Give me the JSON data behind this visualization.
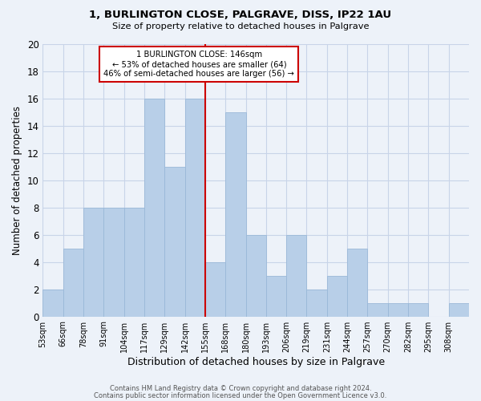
{
  "title1": "1, BURLINGTON CLOSE, PALGRAVE, DISS, IP22 1AU",
  "title2": "Size of property relative to detached houses in Palgrave",
  "xlabel": "Distribution of detached houses by size in Palgrave",
  "ylabel": "Number of detached properties",
  "bin_labels": [
    "53sqm",
    "66sqm",
    "78sqm",
    "91sqm",
    "104sqm",
    "117sqm",
    "129sqm",
    "142sqm",
    "155sqm",
    "168sqm",
    "180sqm",
    "193sqm",
    "206sqm",
    "219sqm",
    "231sqm",
    "244sqm",
    "257sqm",
    "270sqm",
    "282sqm",
    "295sqm",
    "308sqm"
  ],
  "counts": [
    2,
    5,
    8,
    8,
    8,
    16,
    11,
    16,
    4,
    15,
    6,
    3,
    6,
    2,
    3,
    5,
    1,
    1,
    1,
    0,
    1
  ],
  "bar_color": "#b8cfe8",
  "bar_edgecolor": "#9ab8d8",
  "reference_bin_index": 7,
  "reference_line_color": "#cc0000",
  "annotation_box_text": "1 BURLINGTON CLOSE: 146sqm\n← 53% of detached houses are smaller (64)\n46% of semi-detached houses are larger (56) →",
  "annotation_box_edgecolor": "#cc0000",
  "annotation_box_facecolor": "white",
  "ylim": [
    0,
    20
  ],
  "yticks": [
    0,
    2,
    4,
    6,
    8,
    10,
    12,
    14,
    16,
    18,
    20
  ],
  "footer1": "Contains HM Land Registry data © Crown copyright and database right 2024.",
  "footer2": "Contains public sector information licensed under the Open Government Licence v3.0.",
  "bg_color": "#edf2f9",
  "grid_color": "#c8d4e8"
}
